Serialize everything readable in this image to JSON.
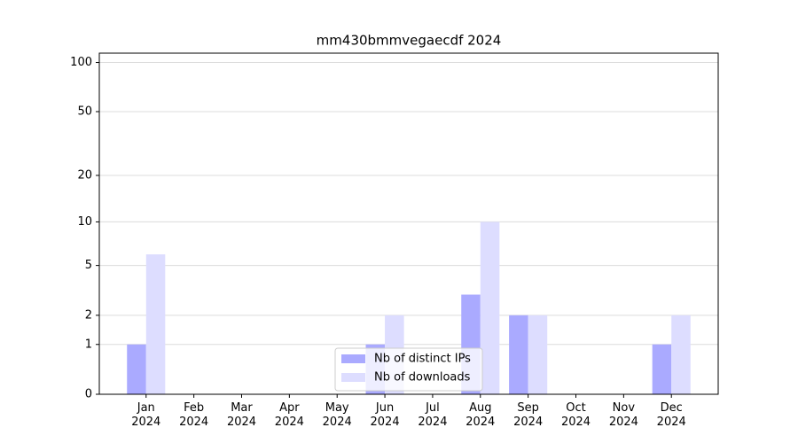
{
  "chart_data": {
    "type": "bar",
    "title": "mm430bmmvegaecdf 2024",
    "categories": [
      "Jan\n2024",
      "Feb\n2024",
      "Mar\n2024",
      "Apr\n2024",
      "May\n2024",
      "Jun\n2024",
      "Jul\n2024",
      "Aug\n2024",
      "Sep\n2024",
      "Oct\n2024",
      "Nov\n2024",
      "Dec\n2024"
    ],
    "series": [
      {
        "name": "Nb of distinct IPs",
        "color": "#aaaaff",
        "values": [
          1,
          0,
          0,
          0,
          0,
          1,
          0,
          3,
          2,
          0,
          0,
          1
        ]
      },
      {
        "name": "Nb of downloads",
        "color": "#ddddff",
        "values": [
          6,
          0,
          0,
          0,
          0,
          2,
          0,
          10,
          2,
          0,
          0,
          2
        ]
      }
    ],
    "yscale": "log1p",
    "ylim": [
      0,
      114
    ],
    "yticks": [
      0,
      1,
      2,
      5,
      10,
      20,
      50,
      100
    ],
    "grid": true,
    "legend": "lower center"
  }
}
